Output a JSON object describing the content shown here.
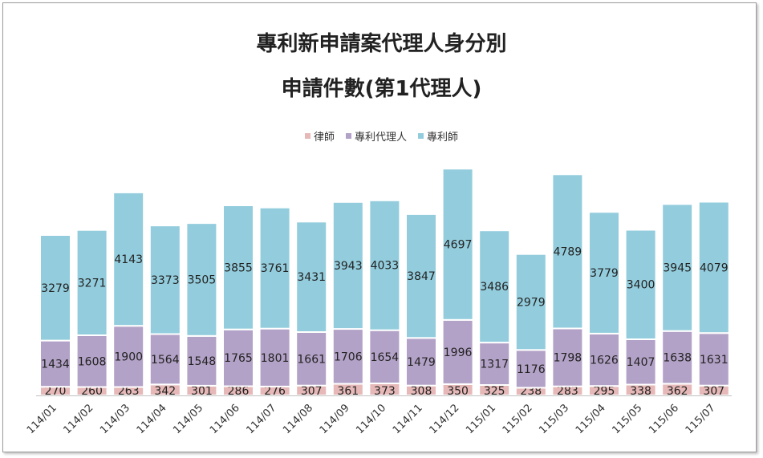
{
  "chart_data": {
    "type": "bar",
    "stacked": true,
    "title": "專利新申請案代理人身分別",
    "subtitle": "申請件數(第1代理人)",
    "legend_position": "top",
    "categories": [
      "114/01",
      "114/02",
      "114/03",
      "114/04",
      "114/05",
      "114/06",
      "114/07",
      "114/08",
      "114/09",
      "114/10",
      "114/11",
      "114/12",
      "115/01",
      "115/02",
      "115/03",
      "115/04",
      "115/05",
      "115/06",
      "115/07"
    ],
    "series": [
      {
        "name": "律師",
        "color": "#e6b9b8",
        "values": [
          270,
          260,
          263,
          342,
          301,
          286,
          276,
          307,
          361,
          373,
          308,
          350,
          325,
          238,
          283,
          295,
          338,
          362,
          307
        ]
      },
      {
        "name": "專利代理人",
        "color": "#b3a2c7",
        "values": [
          1434,
          1608,
          1900,
          1564,
          1548,
          1765,
          1801,
          1661,
          1706,
          1654,
          1479,
          1996,
          1317,
          1176,
          1798,
          1626,
          1407,
          1638,
          1631
        ]
      },
      {
        "name": "專利師",
        "color": "#93cddd",
        "values": [
          3279,
          3271,
          4143,
          3373,
          3505,
          3855,
          3761,
          3431,
          3943,
          4033,
          3847,
          4697,
          3486,
          2979,
          4789,
          3779,
          3400,
          3945,
          4079
        ]
      }
    ],
    "ylim": [
      0,
      7300
    ]
  }
}
